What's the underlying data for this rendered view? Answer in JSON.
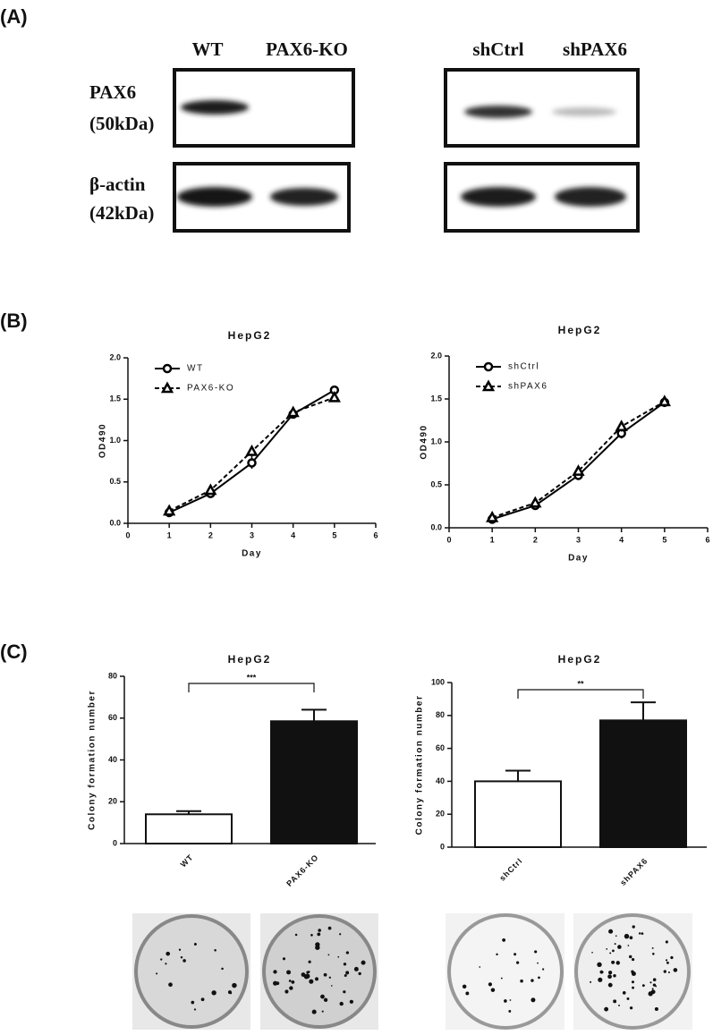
{
  "panel_labels": [
    "(A)",
    "(B)",
    "(C)"
  ],
  "blot": {
    "columns_left": [
      "WT",
      "PAX6-KO"
    ],
    "columns_right": [
      "shCtrl",
      "shPAX6"
    ],
    "rows": [
      {
        "name": "PAX6",
        "size": "(50kDa)"
      },
      {
        "name": "β-actin",
        "size": "(42kDa)"
      }
    ]
  },
  "chart_data": [
    {
      "type": "line",
      "title": "HepG2",
      "xlabel": "Day",
      "ylabel": "OD490",
      "x": [
        1,
        2,
        3,
        4,
        5
      ],
      "xlim": [
        0,
        6
      ],
      "xticks": [
        0,
        1,
        2,
        3,
        4,
        5,
        6
      ],
      "ylim": [
        0,
        2
      ],
      "yticks": [
        {
          "value": 0,
          "label": "0.0"
        },
        0.5,
        {
          "value": 1,
          "label": "1.0"
        },
        1.5,
        {
          "value": 2,
          "label": "2.0"
        }
      ],
      "legend": "upper left",
      "series": [
        {
          "name": "WT",
          "color": "#000000",
          "style": "solid",
          "marker": "circle",
          "values": [
            0.13,
            0.36,
            0.73,
            1.32,
            1.61
          ],
          "errors": [
            0.02,
            0.02,
            0.07,
            0.05,
            0.02
          ]
        },
        {
          "name": "PAX6-KO",
          "color": "#000000",
          "style": "dashed",
          "marker": "triangle",
          "values": [
            0.15,
            0.4,
            0.87,
            1.34,
            1.52
          ],
          "errors": [
            0.02,
            0.02,
            0.07,
            0.04,
            0.02
          ]
        }
      ]
    },
    {
      "type": "line",
      "title": "HepG2",
      "xlabel": "Day",
      "ylabel": "OD490",
      "x": [
        1,
        2,
        3,
        4,
        5
      ],
      "xlim": [
        0,
        6
      ],
      "xticks": [
        0,
        1,
        2,
        3,
        4,
        5,
        6
      ],
      "ylim": [
        0,
        2
      ],
      "yticks": [
        {
          "value": 0,
          "label": "0.0"
        },
        0.5,
        {
          "value": 1,
          "label": "1.0"
        },
        1.5,
        {
          "value": 2,
          "label": "2.0"
        }
      ],
      "legend": "upper left",
      "series": [
        {
          "name": "shCtrl",
          "color": "#000000",
          "style": "solid",
          "marker": "circle",
          "values": [
            0.1,
            0.26,
            0.61,
            1.1,
            1.46
          ],
          "errors": [
            0.02,
            0.02,
            0.04,
            0.06,
            0.02
          ]
        },
        {
          "name": "shPAX6",
          "color": "#000000",
          "style": "dashed",
          "marker": "triangle",
          "values": [
            0.12,
            0.29,
            0.66,
            1.18,
            1.47
          ],
          "errors": [
            0.02,
            0.02,
            0.04,
            0.06,
            0.02
          ]
        }
      ]
    },
    {
      "type": "bar",
      "title": "HepG2",
      "ylabel": "Colony formation number",
      "categories": [
        "WT",
        "PAX6-KO"
      ],
      "values": [
        14,
        58.5
      ],
      "errors": [
        1.5,
        5.5
      ],
      "colors": [
        "#ffffff",
        "#111111"
      ],
      "ylim": [
        0,
        80
      ],
      "yticks": [
        0,
        20,
        40,
        60,
        80
      ],
      "significance": "***"
    },
    {
      "type": "bar",
      "title": "HepG2",
      "ylabel": "Colony formation number",
      "categories": [
        "shCtrl",
        "shPAX6"
      ],
      "values": [
        40,
        77
      ],
      "errors": [
        6.5,
        11
      ],
      "colors": [
        "#ffffff",
        "#111111"
      ],
      "ylim": [
        0,
        100
      ],
      "yticks": [
        0,
        20,
        40,
        60,
        80,
        100
      ],
      "significance": "**"
    }
  ]
}
